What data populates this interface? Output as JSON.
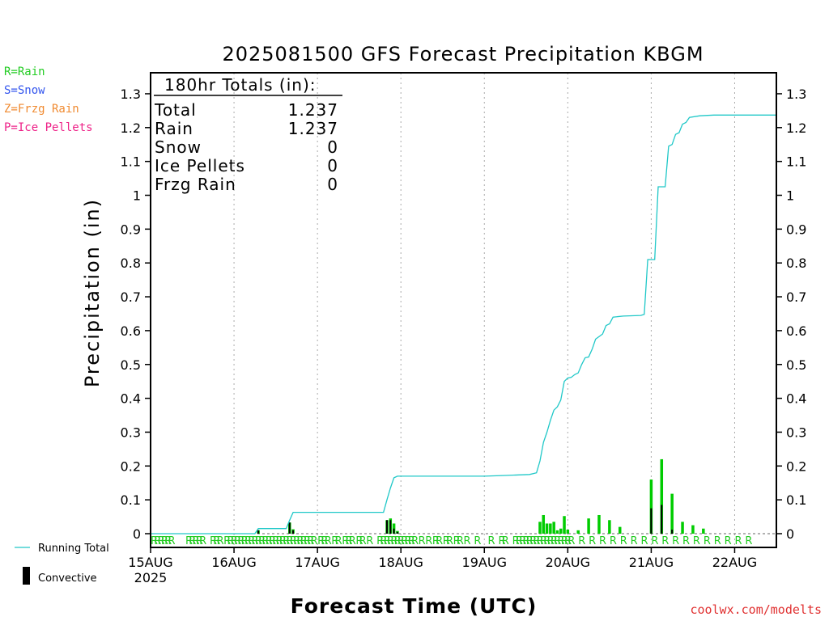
{
  "title": "2025081500 GFS Forecast Precipitation KBGM",
  "ptype_key": [
    {
      "label": "R=Rain",
      "color": "#22cc22"
    },
    {
      "label": "S=Snow",
      "color": "#3355ee"
    },
    {
      "label": "Z=Frzg Rain",
      "color": "#f08a30"
    },
    {
      "label": "P=Ice Pellets",
      "color": "#ee2288"
    }
  ],
  "totals": {
    "header": "180hr Totals (in):",
    "rows": [
      {
        "label": "Total",
        "value": "1.237"
      },
      {
        "label": "Rain",
        "value": "1.237"
      },
      {
        "label": "Snow",
        "value": "0"
      },
      {
        "label": "Ice Pellets",
        "value": "0"
      },
      {
        "label": "Frzg Rain",
        "value": "0"
      }
    ]
  },
  "legend": {
    "running_total": "Running Total",
    "convective": "Convective"
  },
  "credit": "coolwx.com/modelts",
  "colors": {
    "running_total": "#20c8c8",
    "precip_bar": "#00cc00",
    "convective": "#000000",
    "rain_label": "#22cc22",
    "grid": "#aaaaaa"
  },
  "chart_data": {
    "type": "bar",
    "title": "2025081500 GFS Forecast Precipitation KBGM",
    "xlabel": "Forecast Time (UTC)",
    "ylabel": "Precipitation (in)",
    "ylim": [
      0,
      1.35
    ],
    "xlim_hours": [
      0,
      180
    ],
    "yticks": [
      0,
      0.1,
      0.2,
      0.3,
      0.4,
      0.5,
      0.6,
      0.7,
      0.8,
      0.9,
      1,
      1.1,
      1.2,
      1.3
    ],
    "ytick_labels": [
      "0",
      "0.1",
      "0.2",
      "0.3",
      "0.4",
      "0.5",
      "0.6",
      "0.7",
      "0.8",
      "0.9",
      "1",
      "1.1",
      "1.2",
      "1.3"
    ],
    "x_ticks": [
      {
        "hour": 0,
        "label": "15AUG",
        "sub": "2025"
      },
      {
        "hour": 24,
        "label": "16AUG"
      },
      {
        "hour": 48,
        "label": "17AUG"
      },
      {
        "hour": 72,
        "label": "18AUG"
      },
      {
        "hour": 96,
        "label": "19AUG"
      },
      {
        "hour": 120,
        "label": "20AUG"
      },
      {
        "hour": 144,
        "label": "21AUG"
      },
      {
        "hour": 168,
        "label": "22AUG"
      }
    ],
    "bars": [
      {
        "hour": 31,
        "value": 0.01,
        "conv": 0.01
      },
      {
        "hour": 40,
        "value": 0.033,
        "conv": 0.033
      },
      {
        "hour": 41,
        "value": 0.013,
        "conv": 0.01
      },
      {
        "hour": 68,
        "value": 0.04,
        "conv": 0.04
      },
      {
        "hour": 69,
        "value": 0.045,
        "conv": 0.04
      },
      {
        "hour": 70,
        "value": 0.03,
        "conv": 0.015
      },
      {
        "hour": 71,
        "value": 0.008,
        "conv": 0.005
      },
      {
        "hour": 112,
        "value": 0.035,
        "conv": 0
      },
      {
        "hour": 113,
        "value": 0.055,
        "conv": 0
      },
      {
        "hour": 114,
        "value": 0.03,
        "conv": 0
      },
      {
        "hour": 115,
        "value": 0.03,
        "conv": 0
      },
      {
        "hour": 116,
        "value": 0.035,
        "conv": 0
      },
      {
        "hour": 117,
        "value": 0.01,
        "conv": 0
      },
      {
        "hour": 118,
        "value": 0.015,
        "conv": 0
      },
      {
        "hour": 119,
        "value": 0.052,
        "conv": 0
      },
      {
        "hour": 120,
        "value": 0.012,
        "conv": 0
      },
      {
        "hour": 123,
        "value": 0.01,
        "conv": 0
      },
      {
        "hour": 126,
        "value": 0.045,
        "conv": 0
      },
      {
        "hour": 129,
        "value": 0.055,
        "conv": 0
      },
      {
        "hour": 132,
        "value": 0.04,
        "conv": 0
      },
      {
        "hour": 135,
        "value": 0.02,
        "conv": 0
      },
      {
        "hour": 144,
        "value": 0.16,
        "conv": 0.075
      },
      {
        "hour": 147,
        "value": 0.22,
        "conv": 0.085
      },
      {
        "hour": 150,
        "value": 0.118,
        "conv": 0.012
      },
      {
        "hour": 153,
        "value": 0.035,
        "conv": 0
      },
      {
        "hour": 156,
        "value": 0.025,
        "conv": 0
      },
      {
        "hour": 159,
        "value": 0.015,
        "conv": 0
      }
    ],
    "running_total": [
      [
        0,
        0
      ],
      [
        30,
        0
      ],
      [
        31,
        0.015
      ],
      [
        39,
        0.015
      ],
      [
        40,
        0.04
      ],
      [
        41,
        0.063
      ],
      [
        67,
        0.063
      ],
      [
        68,
        0.1
      ],
      [
        69,
        0.135
      ],
      [
        70,
        0.165
      ],
      [
        71,
        0.17
      ],
      [
        96,
        0.17
      ],
      [
        102,
        0.172
      ],
      [
        109,
        0.175
      ],
      [
        111,
        0.18
      ],
      [
        112,
        0.215
      ],
      [
        113,
        0.27
      ],
      [
        114,
        0.3
      ],
      [
        115,
        0.335
      ],
      [
        116,
        0.365
      ],
      [
        117,
        0.375
      ],
      [
        118,
        0.395
      ],
      [
        119,
        0.45
      ],
      [
        120,
        0.46
      ],
      [
        121,
        0.462
      ],
      [
        122,
        0.47
      ],
      [
        123,
        0.475
      ],
      [
        124,
        0.5
      ],
      [
        125,
        0.52
      ],
      [
        126,
        0.522
      ],
      [
        127,
        0.545
      ],
      [
        128,
        0.575
      ],
      [
        130,
        0.59
      ],
      [
        131,
        0.615
      ],
      [
        132,
        0.62
      ],
      [
        133,
        0.64
      ],
      [
        136,
        0.643
      ],
      [
        141,
        0.645
      ],
      [
        142,
        0.648
      ],
      [
        143,
        0.81
      ],
      [
        145,
        0.81
      ],
      [
        146,
        1.025
      ],
      [
        148,
        1.025
      ],
      [
        149,
        1.145
      ],
      [
        150,
        1.15
      ],
      [
        151,
        1.18
      ],
      [
        152,
        1.185
      ],
      [
        153,
        1.21
      ],
      [
        154,
        1.215
      ],
      [
        155,
        1.23
      ],
      [
        158,
        1.235
      ],
      [
        162,
        1.237
      ],
      [
        180,
        1.237
      ]
    ],
    "ptype_codes": [
      {
        "hour": 0,
        "code": "R"
      },
      {
        "hour": 1,
        "code": "R"
      },
      {
        "hour": 2,
        "code": "R"
      },
      {
        "hour": 3,
        "code": "R"
      },
      {
        "hour": 4,
        "code": "R"
      },
      {
        "hour": 5,
        "code": "R"
      },
      {
        "hour": 10,
        "code": "R"
      },
      {
        "hour": 11,
        "code": "R"
      },
      {
        "hour": 12,
        "code": "R"
      },
      {
        "hour": 13,
        "code": "R"
      },
      {
        "hour": 14,
        "code": "R"
      },
      {
        "hour": 17,
        "code": "R"
      },
      {
        "hour": 18,
        "code": "R"
      },
      {
        "hour": 19,
        "code": "R"
      },
      {
        "hour": 21,
        "code": "R"
      },
      {
        "hour": 22,
        "code": "R"
      },
      {
        "hour": 23,
        "code": "R"
      },
      {
        "hour": 24,
        "code": "R"
      },
      {
        "hour": 25,
        "code": "R"
      },
      {
        "hour": 26,
        "code": "R"
      },
      {
        "hour": 27,
        "code": "R"
      },
      {
        "hour": 28,
        "code": "R"
      },
      {
        "hour": 29,
        "code": "R"
      },
      {
        "hour": 30,
        "code": "R"
      },
      {
        "hour": 31,
        "code": "R"
      },
      {
        "hour": 32,
        "code": "R"
      },
      {
        "hour": 33,
        "code": "R"
      },
      {
        "hour": 34,
        "code": "R"
      },
      {
        "hour": 35,
        "code": "R"
      },
      {
        "hour": 36,
        "code": "R"
      },
      {
        "hour": 37,
        "code": "R"
      },
      {
        "hour": 38,
        "code": "R"
      },
      {
        "hour": 39,
        "code": "R"
      },
      {
        "hour": 40,
        "code": "R"
      },
      {
        "hour": 41,
        "code": "R"
      },
      {
        "hour": 42,
        "code": "R"
      },
      {
        "hour": 43,
        "code": "R"
      },
      {
        "hour": 44,
        "code": "R"
      },
      {
        "hour": 45,
        "code": "R"
      },
      {
        "hour": 46,
        "code": "R"
      },
      {
        "hour": 48,
        "code": "R"
      },
      {
        "hour": 49,
        "code": "R"
      },
      {
        "hour": 50,
        "code": "R"
      },
      {
        "hour": 52,
        "code": "R"
      },
      {
        "hour": 53,
        "code": "R"
      },
      {
        "hour": 55,
        "code": "R"
      },
      {
        "hour": 56,
        "code": "R"
      },
      {
        "hour": 57,
        "code": "R"
      },
      {
        "hour": 59,
        "code": "R"
      },
      {
        "hour": 60,
        "code": "R"
      },
      {
        "hour": 62,
        "code": "R"
      },
      {
        "hour": 65,
        "code": "R"
      },
      {
        "hour": 66,
        "code": "R"
      },
      {
        "hour": 67,
        "code": "R"
      },
      {
        "hour": 68,
        "code": "R"
      },
      {
        "hour": 69,
        "code": "R"
      },
      {
        "hour": 70,
        "code": "R"
      },
      {
        "hour": 71,
        "code": "R"
      },
      {
        "hour": 72,
        "code": "R"
      },
      {
        "hour": 73,
        "code": "R"
      },
      {
        "hour": 74,
        "code": "R"
      },
      {
        "hour": 75,
        "code": "R"
      },
      {
        "hour": 77,
        "code": "R"
      },
      {
        "hour": 79,
        "code": "R"
      },
      {
        "hour": 81,
        "code": "R"
      },
      {
        "hour": 82,
        "code": "R"
      },
      {
        "hour": 84,
        "code": "R"
      },
      {
        "hour": 85,
        "code": "R"
      },
      {
        "hour": 87,
        "code": "R"
      },
      {
        "hour": 88,
        "code": "R"
      },
      {
        "hour": 90,
        "code": "R"
      },
      {
        "hour": 93,
        "code": "R"
      },
      {
        "hour": 97,
        "code": "R"
      },
      {
        "hour": 100,
        "code": "R"
      },
      {
        "hour": 101,
        "code": "R"
      },
      {
        "hour": 104,
        "code": "R"
      },
      {
        "hour": 105,
        "code": "R"
      },
      {
        "hour": 106,
        "code": "R"
      },
      {
        "hour": 107,
        "code": "R"
      },
      {
        "hour": 108,
        "code": "R"
      },
      {
        "hour": 109,
        "code": "R"
      },
      {
        "hour": 110,
        "code": "R"
      },
      {
        "hour": 111,
        "code": "R"
      },
      {
        "hour": 112,
        "code": "R"
      },
      {
        "hour": 113,
        "code": "R"
      },
      {
        "hour": 114,
        "code": "R"
      },
      {
        "hour": 115,
        "code": "R"
      },
      {
        "hour": 116,
        "code": "R"
      },
      {
        "hour": 117,
        "code": "R"
      },
      {
        "hour": 118,
        "code": "R"
      },
      {
        "hour": 119,
        "code": "R"
      },
      {
        "hour": 120,
        "code": "R"
      },
      {
        "hour": 123,
        "code": "R"
      },
      {
        "hour": 126,
        "code": "R"
      },
      {
        "hour": 129,
        "code": "R"
      },
      {
        "hour": 132,
        "code": "R"
      },
      {
        "hour": 135,
        "code": "R"
      },
      {
        "hour": 138,
        "code": "R"
      },
      {
        "hour": 141,
        "code": "R"
      },
      {
        "hour": 144,
        "code": "R"
      },
      {
        "hour": 147,
        "code": "R"
      },
      {
        "hour": 150,
        "code": "R"
      },
      {
        "hour": 153,
        "code": "R"
      },
      {
        "hour": 156,
        "code": "R"
      },
      {
        "hour": 159,
        "code": "R"
      },
      {
        "hour": 162,
        "code": "R"
      },
      {
        "hour": 165,
        "code": "R"
      },
      {
        "hour": 168,
        "code": "R"
      },
      {
        "hour": 171,
        "code": "R"
      }
    ]
  }
}
